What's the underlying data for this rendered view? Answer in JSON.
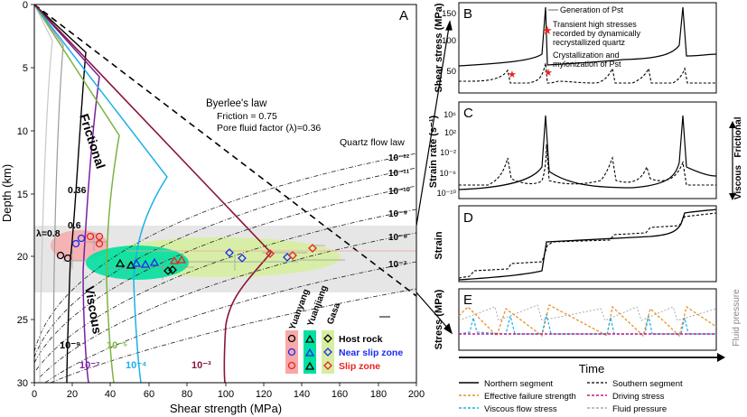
{
  "panel_a": {
    "letter": "A",
    "xlabel": "Shear strength (MPa)",
    "ylabel": "Depth (km)",
    "xticks": [
      "0",
      "20",
      "40",
      "60",
      "80",
      "100",
      "120",
      "140",
      "160",
      "180",
      "200"
    ],
    "yticks": [
      "0",
      "5",
      "10",
      "15",
      "20",
      "25",
      "30"
    ],
    "byerlee_title": "Byerlee's law",
    "byerlee_friction": "Friction = 0.75",
    "byerlee_pore": "Pore fluid factor (λ)=0.36",
    "frictional": "Frictional",
    "viscous": "Viscous",
    "quartz_flow_law": "Quartz flow law",
    "lambda_08": "λ=0.8",
    "lambda_06": "0.6",
    "lambda_036": "0.36",
    "strain_rates_right": [
      "10⁻¹²",
      "10⁻¹¹",
      "10⁻¹⁰",
      "10⁻⁹",
      "10⁻⁸",
      "10⁻⁷"
    ],
    "strain_rates_bottom": [
      "10⁻⁹",
      "10⁻⁷",
      "10⁻⁵",
      "10⁻⁴",
      "10⁻³"
    ],
    "legend": {
      "col_yuanyang": "Yuanyang",
      "col_yuanjiang": "Yuanjiang",
      "col_gasa": "Gasa",
      "host_rock": "Host rock",
      "near_slip_zone": "Near slip zone",
      "slip_zone": "Slip zone"
    }
  },
  "panel_b": {
    "letter": "B",
    "ylabel": "Shear stress (MPa)",
    "yticks": [
      "50",
      "100",
      "150"
    ],
    "note_generation": "Generation of Pst",
    "note_transient_1": "Transient high stresses",
    "note_transient_2": "recorded by dynamically",
    "note_transient_3": "recrystallized quartz",
    "note_crystal_1": "Crystallization and",
    "note_crystal_2": "mylonization of Pst"
  },
  "panel_c": {
    "letter": "C",
    "ylabel": "Strain rate (s⁻¹)",
    "yticks": [
      "10⁶",
      "10²",
      "10⁻²",
      "10⁻⁶",
      "10⁻¹⁰"
    ],
    "frictional": "Frictional",
    "viscous": "Viscous"
  },
  "panel_d": {
    "letter": "D",
    "ylabel": "Strain"
  },
  "panel_e": {
    "letter": "E",
    "ylabel": "Stress (MPa)",
    "right_label": "Fluid pressure"
  },
  "time_label": "Time",
  "bottom_legend": {
    "northern": "Northern segment",
    "southern": "Southern segment",
    "effective_failure": "Effective failure strength",
    "driving": "Driving stress",
    "viscous_flow": "Viscous flow stress",
    "fluid_pressure": "Fluid pressure"
  },
  "colors": {
    "yuanyang": "#f08080",
    "yuanjiang": "#00d68f",
    "gasa": "#c8e68c",
    "near_slip": "#1a2cf0",
    "slip": "#e8231d",
    "orange": "#e8922a",
    "magenta": "#c71585",
    "cyan": "#1ab0e8",
    "olive": "#7cb342",
    "purple": "#7b1fa2",
    "maroon": "#8b1538"
  }
}
